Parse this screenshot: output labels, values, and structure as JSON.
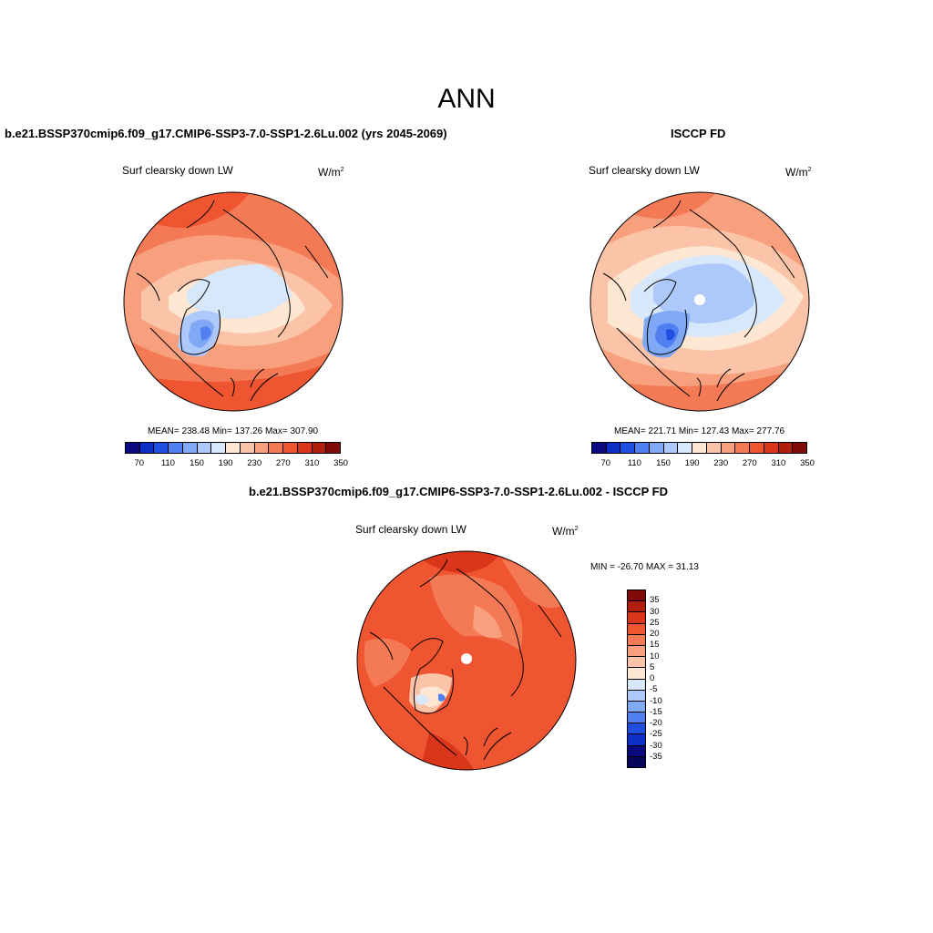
{
  "figure": {
    "title": "ANN",
    "left_panel": {
      "case": "b.e21.BSSP370cmip6.f09_g17.CMIP6-SSP3-7.0-SSP1-2.6Lu.002 (yrs 2045-2069)",
      "variable": "Surf clearsky down LW",
      "units": "W/m",
      "units_sup": "2",
      "stats": "MEAN= 238.48  Min= 137.26  Max= 307.90"
    },
    "right_panel": {
      "case": "ISCCP FD",
      "variable": "Surf clearsky down LW",
      "units": "W/m",
      "units_sup": "2",
      "stats": "MEAN= 221.71  Min= 127.43  Max= 277.76"
    },
    "diff_panel": {
      "case": "b.e21.BSSP370cmip6.f09_g17.CMIP6-SSP3-7.0-SSP1-2.6Lu.002 - ISCCP FD",
      "variable": "Surf clearsky down LW",
      "units": "W/m",
      "units_sup": "2",
      "stats": "MIN = -26.70 MAX =  31.13"
    }
  },
  "colorbar_abs": {
    "colors": [
      "#0a0a7e",
      "#0d2ec7",
      "#1f4fe0",
      "#4f7ff0",
      "#7fa8f5",
      "#adc8fa",
      "#d8e8fb",
      "#fde6d2",
      "#fbc4a8",
      "#f89f7e",
      "#f47a55",
      "#ee5530",
      "#d9361b",
      "#b01e0e",
      "#800a05"
    ],
    "ticks": [
      "70",
      "110",
      "150",
      "190",
      "230",
      "270",
      "310",
      "350"
    ]
  },
  "colorbar_diff": {
    "colors": [
      "#800a05",
      "#b01e0e",
      "#d9361b",
      "#ee5530",
      "#f47a55",
      "#f89f7e",
      "#fbc4a8",
      "#fde6d2",
      "#d8e8fb",
      "#adc8fa",
      "#7fa8f5",
      "#4f7ff0",
      "#1f4fe0",
      "#0d2ec7",
      "#0a0a7e",
      "#05055a"
    ],
    "ticks": [
      "35",
      "30",
      "25",
      "20",
      "15",
      "10",
      "5",
      "0",
      "-5",
      "-10",
      "-15",
      "-20",
      "-25",
      "-30",
      "-35"
    ]
  }
}
